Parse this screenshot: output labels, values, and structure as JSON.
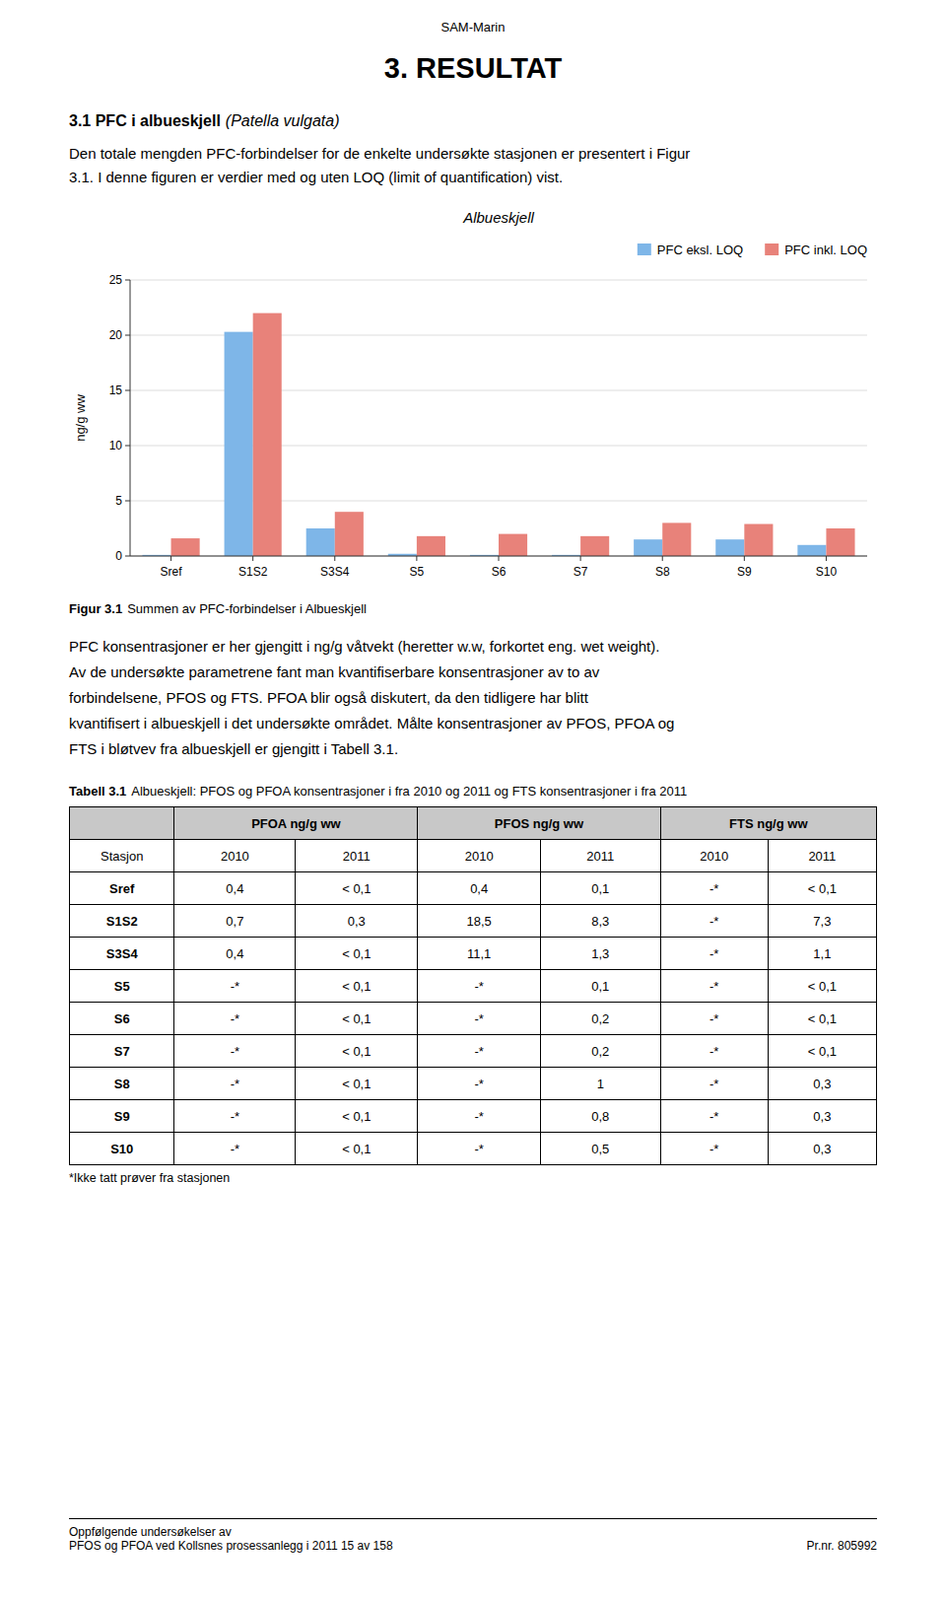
{
  "page": {
    "header": "SAM-Marin",
    "title": "3. RESULTAT",
    "section_title": "3.1 PFC i albueskjell",
    "section_title_italic": "(Patella vulgata)",
    "intro": [
      "Den totale mengden PFC-forbindelser for de enkelte undersøkte stasjonen er presentert i Figur",
      "3.1. I denne figuren er verdier med og uten LOQ (limit of quantification) vist."
    ],
    "figure_caption_label": "Figur 3.1",
    "figure_caption": "Summen av PFC-forbindelser i Albueskjell",
    "body": [
      "PFC konsentrasjoner er her gjengitt i ng/g våtvekt (heretter w.w, forkortet eng. wet weight).",
      "Av de undersøkte parametrene fant man kvantifiserbare konsentrasjoner av to av",
      "forbindelsene, PFOS og FTS. PFOA blir også diskutert, da den tidligere har blitt",
      "kvantifisert i albueskjell i det undersøkte området. Målte konsentrasjoner av PFOS, PFOA og",
      "FTS i bløtvev fra albueskjell er gjengitt i Tabell 3.1."
    ],
    "table": {
      "title_label": "Tabell 3.1",
      "title": "Albueskjell: PFOS og PFOA konsentrasjoner i fra 2010 og 2011 og FTS konsentrasjoner i fra 2011",
      "groups": [
        "PFOA ng/g ww",
        "PFOS ng/g ww",
        "FTS ng/g ww"
      ],
      "station_header": "Stasjon",
      "years": [
        "2010",
        "2011",
        "2010",
        "2011",
        "2010",
        "2011"
      ],
      "rows": [
        {
          "station": "Sref",
          "values": [
            "0,4",
            "< 0,1",
            "0,4",
            "0,1",
            "-*",
            "< 0,1"
          ]
        },
        {
          "station": "S1S2",
          "values": [
            "0,7",
            "0,3",
            "18,5",
            "8,3",
            "-*",
            "7,3"
          ]
        },
        {
          "station": "S3S4",
          "values": [
            "0,4",
            "< 0,1",
            "11,1",
            "1,3",
            "-*",
            "1,1"
          ]
        },
        {
          "station": "S5",
          "values": [
            "-*",
            "< 0,1",
            "-*",
            "0,1",
            "-*",
            "< 0,1"
          ]
        },
        {
          "station": "S6",
          "values": [
            "-*",
            "< 0,1",
            "-*",
            "0,2",
            "-*",
            "< 0,1"
          ]
        },
        {
          "station": "S7",
          "values": [
            "-*",
            "< 0,1",
            "-*",
            "0,2",
            "-*",
            "< 0,1"
          ]
        },
        {
          "station": "S8",
          "values": [
            "-*",
            "< 0,1",
            "-*",
            "1",
            "-*",
            "0,3"
          ]
        },
        {
          "station": "S9",
          "values": [
            "-*",
            "< 0,1",
            "-*",
            "0,8",
            "-*",
            "0,3"
          ]
        },
        {
          "station": "S10",
          "values": [
            "-*",
            "< 0,1",
            "-*",
            "0,5",
            "-*",
            "0,3"
          ]
        }
      ],
      "footnote": "*Ikke tatt prøver fra stasjonen"
    },
    "footer_left": [
      "Oppfølgende undersøkelser av",
      "PFOS og PFOA ved Kollsnes prosessanlegg i 2011 15 av 158"
    ],
    "footer_right": "Pr.nr. 805992"
  },
  "chart_data": {
    "type": "bar",
    "title": "Albueskjell",
    "categories": [
      "Sref",
      "S1S2",
      "S3S4",
      "S5",
      "S6",
      "S7",
      "S8",
      "S9",
      "S10"
    ],
    "series": [
      {
        "name": "PFC eksl. LOQ",
        "color": "#7EB6E8",
        "values": [
          0.1,
          20.3,
          2.5,
          0.2,
          0.1,
          0.1,
          1.5,
          1.5,
          1.0
        ]
      },
      {
        "name": "PFC inkl. LOQ",
        "color": "#E8827A",
        "values": [
          1.6,
          22.0,
          4.0,
          1.8,
          2.0,
          1.8,
          3.0,
          2.9,
          2.5
        ]
      }
    ],
    "ylabel": "ng/g ww",
    "ylim": [
      0,
      25
    ],
    "yticks": [
      0,
      5,
      10,
      15,
      20,
      25
    ],
    "grid": true,
    "legend": "upper right"
  }
}
